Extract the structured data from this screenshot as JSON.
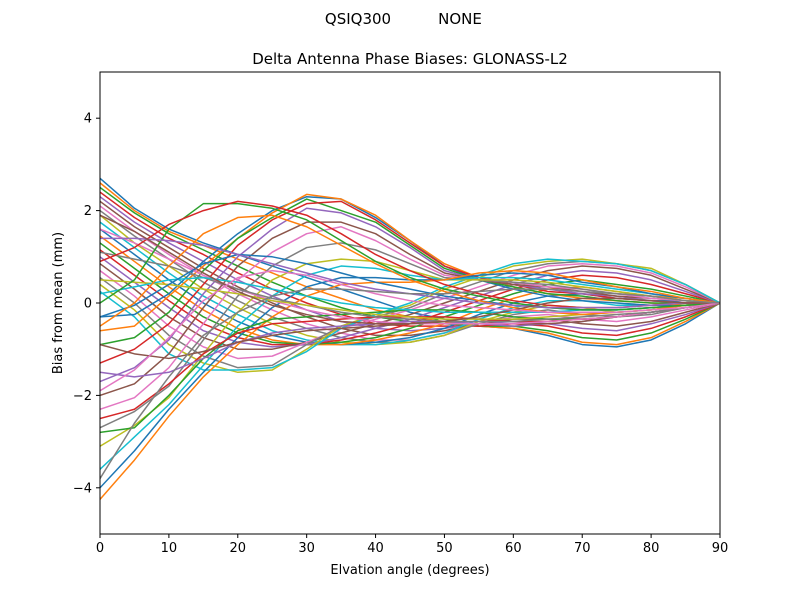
{
  "figure": {
    "suptitle_left": "QSIQ300",
    "suptitle_right": "NONE"
  },
  "chart_data": {
    "type": "line",
    "title": "Delta Antenna Phase Biases: GLONASS-L2",
    "xlabel": "Elvation angle (degrees)",
    "ylabel": "Bias from mean (mm)",
    "xlim": [
      0,
      90
    ],
    "ylim": [
      -5,
      5
    ],
    "x_ticks": [
      0,
      10,
      20,
      30,
      40,
      50,
      60,
      70,
      80,
      90
    ],
    "y_ticks": [
      -4,
      -2,
      0,
      2,
      4
    ],
    "x_tick_labels": [
      "0",
      "10",
      "20",
      "30",
      "40",
      "50",
      "60",
      "70",
      "80",
      "90"
    ],
    "y_tick_labels": [
      "−4",
      "−2",
      "0",
      "2",
      "4"
    ],
    "grid": false,
    "legend": "none",
    "palette": [
      "#1f77b4",
      "#ff7f0e",
      "#2ca02c",
      "#d62728",
      "#9467bd",
      "#8c564b",
      "#e377c2",
      "#7f7f7f",
      "#bcbd22",
      "#17becf"
    ],
    "x": [
      0,
      5,
      10,
      15,
      20,
      25,
      30,
      35,
      40,
      45,
      50,
      55,
      60,
      65,
      70,
      75,
      80,
      85,
      90
    ],
    "series": [
      {
        "values": [
          2.7,
          2.05,
          1.6,
          1.3,
          1.05,
          0.8,
          0.55,
          0.3,
          0.05,
          -0.2,
          -0.35,
          -0.5,
          -0.55,
          -0.7,
          -0.9,
          -0.95,
          -0.8,
          -0.45,
          0
        ]
      },
      {
        "values": [
          2.6,
          2.0,
          1.55,
          1.25,
          0.95,
          0.65,
          0.35,
          0.1,
          -0.15,
          -0.3,
          -0.4,
          -0.5,
          -0.55,
          -0.65,
          -0.85,
          -0.9,
          -0.75,
          -0.4,
          0
        ]
      },
      {
        "values": [
          2.5,
          1.95,
          1.5,
          1.15,
          0.8,
          0.45,
          0.15,
          -0.1,
          -0.3,
          -0.4,
          -0.45,
          -0.5,
          -0.5,
          -0.6,
          -0.75,
          -0.8,
          -0.65,
          -0.35,
          0
        ]
      },
      {
        "values": [
          2.4,
          1.85,
          1.4,
          1.05,
          0.65,
          0.3,
          0.0,
          -0.25,
          -0.45,
          -0.5,
          -0.5,
          -0.5,
          -0.45,
          -0.5,
          -0.65,
          -0.7,
          -0.55,
          -0.3,
          0
        ]
      },
      {
        "values": [
          2.3,
          1.75,
          1.3,
          0.9,
          0.5,
          0.15,
          -0.15,
          -0.4,
          -0.55,
          -0.6,
          -0.55,
          -0.45,
          -0.4,
          -0.45,
          -0.55,
          -0.6,
          -0.45,
          -0.25,
          0
        ]
      },
      {
        "values": [
          2.2,
          1.65,
          1.2,
          0.75,
          0.35,
          0.0,
          -0.3,
          -0.55,
          -0.7,
          -0.7,
          -0.6,
          -0.45,
          -0.35,
          -0.35,
          -0.45,
          -0.5,
          -0.4,
          -0.2,
          0
        ]
      },
      {
        "values": [
          2.1,
          1.55,
          1.05,
          0.6,
          0.2,
          -0.15,
          -0.45,
          -0.65,
          -0.8,
          -0.8,
          -0.65,
          -0.45,
          -0.3,
          -0.25,
          -0.35,
          -0.4,
          -0.3,
          -0.15,
          0
        ]
      },
      {
        "values": [
          2.0,
          1.45,
          0.95,
          0.45,
          0.05,
          -0.3,
          -0.55,
          -0.75,
          -0.85,
          -0.85,
          -0.7,
          -0.45,
          -0.25,
          -0.15,
          -0.25,
          -0.3,
          -0.25,
          -0.1,
          0
        ]
      },
      {
        "values": [
          1.9,
          1.3,
          0.8,
          0.3,
          -0.1,
          -0.45,
          -0.7,
          -0.85,
          -0.9,
          -0.85,
          -0.7,
          -0.4,
          -0.2,
          -0.05,
          -0.1,
          -0.2,
          -0.15,
          -0.05,
          0
        ]
      },
      {
        "values": [
          1.75,
          1.2,
          0.65,
          0.15,
          -0.25,
          -0.6,
          -0.8,
          -0.9,
          -0.9,
          -0.8,
          -0.65,
          -0.35,
          -0.1,
          0.05,
          0.05,
          -0.05,
          -0.05,
          0.0,
          0
        ]
      },
      {
        "values": [
          1.6,
          1.05,
          0.5,
          0.0,
          -0.4,
          -0.7,
          -0.85,
          -0.9,
          -0.85,
          -0.75,
          -0.55,
          -0.25,
          0.0,
          0.15,
          0.2,
          0.1,
          0.05,
          0.05,
          0
        ]
      },
      {
        "values": [
          1.45,
          0.9,
          0.35,
          -0.15,
          -0.55,
          -0.8,
          -0.9,
          -0.9,
          -0.8,
          -0.65,
          -0.45,
          -0.15,
          0.1,
          0.3,
          0.35,
          0.25,
          0.15,
          0.1,
          0
        ]
      },
      {
        "values": [
          1.3,
          0.75,
          0.2,
          -0.3,
          -0.65,
          -0.85,
          -0.9,
          -0.85,
          -0.75,
          -0.55,
          -0.3,
          -0.05,
          0.2,
          0.4,
          0.5,
          0.4,
          0.3,
          0.15,
          0
        ]
      },
      {
        "values": [
          1.15,
          0.6,
          0.05,
          -0.45,
          -0.75,
          -0.9,
          -0.9,
          -0.8,
          -0.65,
          -0.45,
          -0.2,
          0.05,
          0.3,
          0.5,
          0.6,
          0.55,
          0.4,
          0.2,
          0
        ]
      },
      {
        "values": [
          1.0,
          0.45,
          -0.1,
          -0.6,
          -0.85,
          -0.95,
          -0.9,
          -0.75,
          -0.55,
          -0.35,
          -0.1,
          0.15,
          0.4,
          0.6,
          0.7,
          0.65,
          0.5,
          0.25,
          0
        ]
      },
      {
        "values": [
          0.85,
          0.3,
          -0.3,
          -0.75,
          -1.0,
          -1.0,
          -0.85,
          -0.65,
          -0.45,
          -0.25,
          0.0,
          0.25,
          0.5,
          0.7,
          0.8,
          0.75,
          0.6,
          0.3,
          0
        ]
      },
      {
        "values": [
          0.7,
          0.15,
          -0.5,
          -0.95,
          -1.2,
          -1.15,
          -0.85,
          -0.55,
          -0.35,
          -0.15,
          0.1,
          0.35,
          0.6,
          0.8,
          0.85,
          0.8,
          0.65,
          0.35,
          0
        ]
      },
      {
        "values": [
          0.55,
          0.0,
          -0.7,
          -1.15,
          -1.4,
          -1.35,
          -0.9,
          -0.5,
          -0.3,
          -0.1,
          0.2,
          0.45,
          0.7,
          0.85,
          0.9,
          0.85,
          0.7,
          0.4,
          0
        ]
      },
      {
        "values": [
          0.4,
          -0.15,
          -0.9,
          -1.3,
          -1.5,
          -1.45,
          -1.0,
          -0.5,
          -0.25,
          -0.05,
          0.3,
          0.55,
          0.8,
          0.9,
          0.95,
          0.85,
          0.75,
          0.4,
          0
        ]
      },
      {
        "values": [
          0.25,
          -0.3,
          -1.1,
          -1.45,
          -1.45,
          -1.4,
          -1.05,
          -0.55,
          -0.25,
          0.0,
          0.35,
          0.6,
          0.85,
          0.95,
          0.9,
          0.85,
          0.7,
          0.4,
          0
        ]
      },
      {
        "values": [
          -0.3,
          -0.25,
          0.2,
          0.9,
          1.5,
          2.0,
          2.3,
          2.25,
          1.85,
          1.35,
          0.8,
          0.5,
          0.3,
          0.15,
          0.05,
          0.0,
          -0.05,
          -0.05,
          0
        ]
      },
      {
        "values": [
          -0.6,
          -0.5,
          0.15,
          0.8,
          1.4,
          1.95,
          2.35,
          2.25,
          1.9,
          1.35,
          0.85,
          0.55,
          0.35,
          0.2,
          0.1,
          0.05,
          0.0,
          -0.05,
          0
        ]
      },
      {
        "values": [
          -0.9,
          -0.75,
          -0.2,
          0.7,
          1.4,
          1.85,
          2.25,
          2.0,
          1.75,
          1.25,
          0.75,
          0.5,
          0.35,
          0.2,
          0.15,
          0.05,
          0.0,
          0.0,
          0
        ]
      },
      {
        "values": [
          -1.3,
          -1.0,
          -0.45,
          0.4,
          1.25,
          1.8,
          2.15,
          2.2,
          1.8,
          1.3,
          0.8,
          0.55,
          0.4,
          0.25,
          0.2,
          0.1,
          0.05,
          0.0,
          0
        ]
      },
      {
        "values": [
          -1.7,
          -1.4,
          -0.8,
          0.2,
          1.0,
          1.6,
          2.05,
          1.95,
          1.65,
          1.2,
          0.7,
          0.5,
          0.4,
          0.3,
          0.2,
          0.15,
          0.05,
          0.0,
          0
        ]
      },
      {
        "values": [
          -2.0,
          -1.75,
          -1.1,
          -0.1,
          0.8,
          1.4,
          1.75,
          1.75,
          1.5,
          1.05,
          0.65,
          0.5,
          0.4,
          0.35,
          0.25,
          0.15,
          0.1,
          0.05,
          0
        ]
      },
      {
        "values": [
          -2.3,
          -2.05,
          -1.4,
          -0.45,
          0.5,
          1.1,
          1.5,
          1.65,
          1.35,
          0.95,
          0.6,
          0.5,
          0.45,
          0.35,
          0.3,
          0.2,
          0.1,
          0.05,
          0
        ]
      },
      {
        "values": [
          -2.7,
          -2.35,
          -1.8,
          -0.8,
          0.15,
          0.8,
          1.2,
          1.3,
          1.15,
          0.85,
          0.55,
          0.5,
          0.45,
          0.4,
          0.3,
          0.2,
          0.15,
          0.05,
          0
        ]
      },
      {
        "values": [
          -3.1,
          -2.65,
          -2.05,
          -1.1,
          -0.2,
          0.5,
          0.85,
          0.95,
          0.9,
          0.7,
          0.5,
          0.5,
          0.5,
          0.45,
          0.35,
          0.25,
          0.15,
          0.05,
          0
        ]
      },
      {
        "values": [
          -3.6,
          -2.9,
          -2.2,
          -1.35,
          -0.5,
          0.15,
          0.6,
          0.8,
          0.75,
          0.6,
          0.5,
          0.55,
          0.55,
          0.5,
          0.4,
          0.3,
          0.2,
          0.1,
          0
        ]
      },
      {
        "values": [
          -4.0,
          -3.2,
          -2.3,
          -1.5,
          -0.75,
          -0.1,
          0.35,
          0.55,
          0.55,
          0.5,
          0.5,
          0.6,
          0.65,
          0.6,
          0.45,
          0.35,
          0.2,
          0.1,
          0
        ]
      },
      {
        "values": [
          -4.25,
          -3.4,
          -2.45,
          -1.6,
          -0.9,
          -0.3,
          0.15,
          0.4,
          0.45,
          0.45,
          0.5,
          0.65,
          0.7,
          0.65,
          0.5,
          0.35,
          0.25,
          0.1,
          0
        ]
      },
      {
        "values": [
          -2.8,
          -2.7,
          -2.0,
          -1.2,
          -0.6,
          -0.35,
          -0.3,
          -0.25,
          -0.2,
          -0.15,
          -0.15,
          -0.2,
          -0.3,
          -0.35,
          -0.35,
          -0.3,
          -0.2,
          -0.1,
          0
        ]
      },
      {
        "values": [
          -2.5,
          -2.3,
          -1.75,
          -1.1,
          -0.65,
          -0.45,
          -0.4,
          -0.35,
          -0.3,
          -0.3,
          -0.3,
          -0.35,
          -0.4,
          -0.4,
          -0.35,
          -0.3,
          -0.2,
          -0.1,
          0
        ]
      },
      {
        "values": [
          -1.5,
          -1.6,
          -1.5,
          -1.2,
          -0.85,
          -0.65,
          -0.55,
          -0.5,
          -0.45,
          -0.4,
          -0.4,
          -0.45,
          -0.5,
          -0.45,
          -0.4,
          -0.3,
          -0.2,
          -0.1,
          0
        ]
      },
      {
        "values": [
          -0.9,
          -1.1,
          -1.2,
          -1.05,
          -0.85,
          -0.7,
          -0.6,
          -0.55,
          -0.5,
          -0.45,
          -0.45,
          -0.45,
          -0.45,
          -0.45,
          -0.4,
          -0.3,
          -0.2,
          -0.1,
          0
        ]
      },
      {
        "values": [
          1.6,
          1.3,
          0.95,
          0.6,
          0.3,
          0.05,
          -0.15,
          -0.3,
          -0.4,
          -0.45,
          -0.45,
          -0.45,
          -0.45,
          -0.4,
          -0.35,
          -0.3,
          -0.2,
          -0.1,
          0
        ]
      },
      {
        "values": [
          1.1,
          0.95,
          0.8,
          0.55,
          0.3,
          0.1,
          -0.05,
          -0.2,
          -0.3,
          -0.35,
          -0.4,
          -0.4,
          -0.4,
          -0.35,
          -0.3,
          -0.25,
          -0.2,
          -0.1,
          0
        ]
      },
      {
        "values": [
          0.5,
          0.45,
          0.4,
          0.3,
          0.2,
          0.05,
          -0.05,
          -0.15,
          -0.25,
          -0.3,
          -0.35,
          -0.35,
          -0.35,
          -0.3,
          -0.25,
          -0.2,
          -0.15,
          -0.05,
          0
        ]
      },
      {
        "values": [
          0.2,
          0.35,
          0.5,
          0.55,
          0.45,
          0.3,
          0.15,
          0.0,
          -0.1,
          -0.15,
          -0.2,
          -0.2,
          -0.2,
          -0.2,
          -0.15,
          -0.15,
          -0.1,
          -0.05,
          0
        ]
      },
      {
        "values": [
          -0.3,
          -0.05,
          0.4,
          0.85,
          1.05,
          1.0,
          0.85,
          0.65,
          0.45,
          0.3,
          0.15,
          0.05,
          -0.05,
          -0.1,
          -0.15,
          -0.15,
          -0.1,
          -0.05,
          0
        ]
      },
      {
        "values": [
          -0.5,
          0.0,
          0.8,
          1.5,
          1.85,
          1.9,
          1.65,
          1.25,
          0.85,
          0.5,
          0.25,
          0.05,
          -0.1,
          -0.2,
          -0.25,
          -0.2,
          -0.15,
          -0.05,
          0
        ]
      },
      {
        "values": [
          0.0,
          0.5,
          1.6,
          2.15,
          2.15,
          2.05,
          1.8,
          1.35,
          0.9,
          0.55,
          0.3,
          0.15,
          0.0,
          -0.1,
          -0.15,
          -0.15,
          -0.1,
          -0.05,
          0
        ]
      },
      {
        "values": [
          0.9,
          1.2,
          1.7,
          2.0,
          2.2,
          2.1,
          1.9,
          1.5,
          1.05,
          0.7,
          0.4,
          0.2,
          0.05,
          -0.05,
          -0.1,
          -0.1,
          -0.05,
          0.0,
          0
        ]
      },
      {
        "values": [
          1.4,
          1.4,
          1.35,
          1.25,
          1.05,
          0.85,
          0.65,
          0.45,
          0.3,
          0.2,
          0.1,
          0.0,
          -0.05,
          -0.1,
          -0.1,
          -0.1,
          -0.05,
          0.0,
          0
        ]
      },
      {
        "values": [
          1.9,
          1.55,
          1.1,
          0.65,
          0.25,
          -0.05,
          -0.25,
          -0.4,
          -0.45,
          -0.45,
          -0.4,
          -0.3,
          -0.15,
          0.0,
          0.1,
          0.1,
          0.05,
          0.0,
          0
        ]
      },
      {
        "values": [
          -1.9,
          -1.45,
          -0.75,
          0.05,
          0.55,
          0.7,
          0.6,
          0.4,
          0.2,
          0.05,
          -0.05,
          -0.1,
          -0.15,
          -0.2,
          -0.2,
          -0.2,
          -0.15,
          -0.1,
          0
        ]
      },
      {
        "values": [
          -3.8,
          -2.6,
          -1.6,
          -0.7,
          -0.2,
          0.15,
          0.3,
          0.3,
          0.25,
          0.2,
          0.2,
          0.25,
          0.3,
          0.3,
          0.25,
          0.2,
          0.15,
          0.05,
          0
        ]
      }
    ]
  }
}
